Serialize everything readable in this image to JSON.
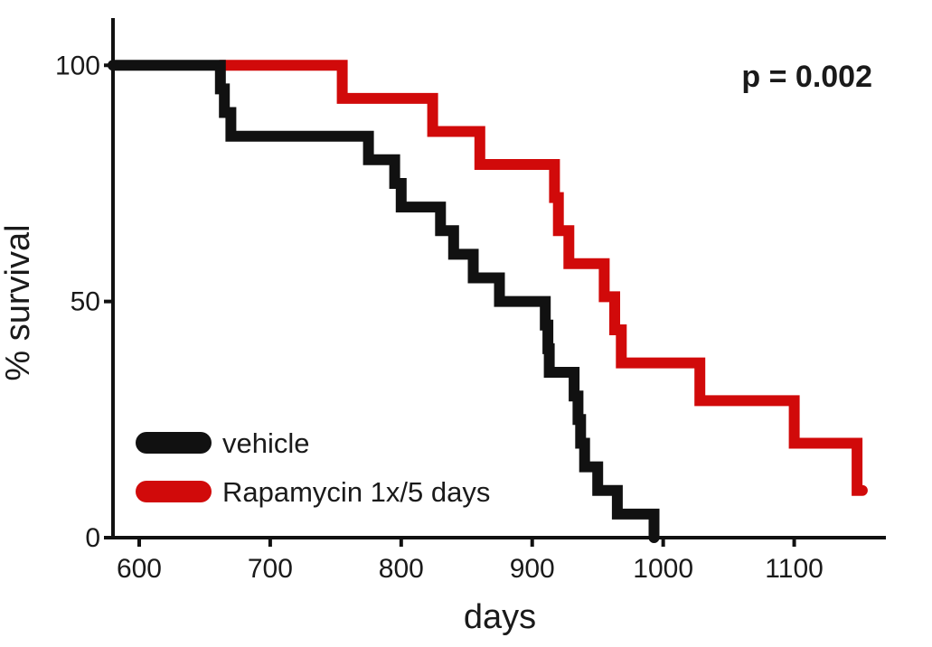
{
  "chart_data": {
    "type": "line",
    "step": true,
    "xlabel": "days",
    "ylabel": "% survival",
    "xlim": [
      580,
      1170
    ],
    "ylim": [
      0,
      110
    ],
    "x_ticks": [
      600,
      700,
      800,
      900,
      1000,
      1100
    ],
    "y_ticks": [
      0,
      50,
      100
    ],
    "grid": false,
    "legend_position": "bottom-left",
    "annotation": "p = 0.002",
    "series": [
      {
        "name": "vehicle",
        "color": "#111111",
        "points": [
          [
            580,
            100
          ],
          [
            662,
            100
          ],
          [
            662,
            95
          ],
          [
            665,
            95
          ],
          [
            665,
            90
          ],
          [
            670,
            90
          ],
          [
            670,
            85
          ],
          [
            775,
            85
          ],
          [
            775,
            80
          ],
          [
            795,
            80
          ],
          [
            795,
            75
          ],
          [
            800,
            75
          ],
          [
            800,
            70
          ],
          [
            830,
            70
          ],
          [
            830,
            65
          ],
          [
            840,
            65
          ],
          [
            840,
            60
          ],
          [
            855,
            60
          ],
          [
            855,
            55
          ],
          [
            875,
            55
          ],
          [
            875,
            50
          ],
          [
            910,
            50
          ],
          [
            910,
            45
          ],
          [
            912,
            45
          ],
          [
            912,
            40
          ],
          [
            913,
            40
          ],
          [
            913,
            35
          ],
          [
            932,
            35
          ],
          [
            932,
            30
          ],
          [
            935,
            30
          ],
          [
            935,
            25
          ],
          [
            937,
            25
          ],
          [
            937,
            20
          ],
          [
            940,
            20
          ],
          [
            940,
            15
          ],
          [
            950,
            15
          ],
          [
            950,
            10
          ],
          [
            965,
            10
          ],
          [
            965,
            5
          ],
          [
            993,
            5
          ],
          [
            993,
            0
          ]
        ]
      },
      {
        "name": "Rapamycin 1x/5 days",
        "color": "#d10a0a",
        "points": [
          [
            662,
            100
          ],
          [
            755,
            100
          ],
          [
            755,
            93
          ],
          [
            824,
            93
          ],
          [
            824,
            86
          ],
          [
            860,
            86
          ],
          [
            860,
            79
          ],
          [
            917,
            79
          ],
          [
            917,
            72
          ],
          [
            920,
            72
          ],
          [
            920,
            65
          ],
          [
            928,
            65
          ],
          [
            928,
            58
          ],
          [
            955,
            58
          ],
          [
            955,
            51
          ],
          [
            963,
            51
          ],
          [
            963,
            44
          ],
          [
            968,
            44
          ],
          [
            968,
            37
          ],
          [
            1028,
            37
          ],
          [
            1028,
            29
          ],
          [
            1100,
            29
          ],
          [
            1100,
            20
          ],
          [
            1148,
            20
          ],
          [
            1148,
            10
          ],
          [
            1152,
            10
          ]
        ]
      }
    ]
  }
}
